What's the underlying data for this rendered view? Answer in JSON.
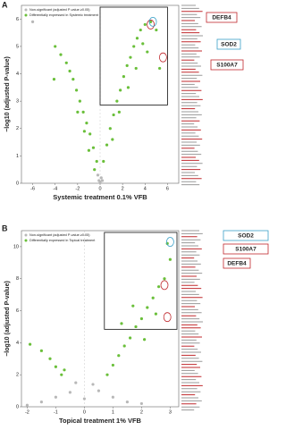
{
  "chart_data": [
    {
      "type": "scatter",
      "panel_label": "A",
      "xlabel": "Systemic treatment 0.1% VFB",
      "ylabel": "−log10 (adjusted P-value)",
      "xlim": [
        -7,
        7
      ],
      "ylim": [
        0,
        6.5
      ],
      "xticks": [
        -6,
        -4,
        -2,
        0,
        2,
        4,
        6
      ],
      "yticks": [
        0,
        1,
        2,
        3,
        4,
        5,
        6
      ],
      "annotations": [
        {
          "text": "DEFB4",
          "color": "#c0282d"
        },
        {
          "text": "SOD2",
          "color": "#3aa0c8"
        },
        {
          "text": "S100A7",
          "color": "#c0282d"
        }
      ],
      "series": [
        {
          "name": "Non-significant (adjusted P-value ≥0.05)",
          "color": "#b8b8b8",
          "x": [
            -0.1,
            0.1,
            0,
            -0.2,
            0.2,
            -6
          ],
          "y": [
            0.1,
            0.2,
            0.05,
            0.3,
            0.1,
            5.9
          ]
        },
        {
          "name": "Differentially expressed in Systemic treatment",
          "color": "#6abf3a",
          "x": [
            -0.3,
            -0.6,
            -0.9,
            -1.2,
            -1.5,
            -1.8,
            -2.1,
            -2.4,
            -2.7,
            -3.0,
            -3.5,
            -4.0,
            -1.0,
            -1.4,
            -2.0,
            -0.5,
            -4.1,
            0.3,
            0.6,
            0.9,
            1.2,
            1.5,
            1.8,
            2.1,
            2.4,
            2.7,
            3.0,
            3.3,
            3.6,
            4.0,
            4.5,
            5.0,
            1.1,
            1.7,
            2.5,
            3.2,
            4.2,
            5.3,
            3.8
          ],
          "y": [
            0.8,
            1.3,
            1.8,
            2.2,
            2.6,
            3.0,
            3.4,
            3.8,
            4.1,
            4.4,
            4.7,
            5.0,
            1.2,
            1.9,
            2.6,
            0.5,
            3.8,
            0.8,
            1.4,
            2.0,
            2.5,
            3.0,
            3.4,
            3.9,
            4.3,
            4.6,
            5.0,
            5.3,
            5.6,
            5.8,
            5.9,
            5.6,
            1.6,
            2.6,
            3.5,
            4.2,
            4.8,
            4.2,
            5.1
          ]
        }
      ]
    },
    {
      "type": "scatter",
      "panel_label": "B",
      "xlabel": "Topical treatment 1% VFB",
      "ylabel": "−log10 (adjusted P-value)",
      "xlim": [
        -2.2,
        3.3
      ],
      "ylim": [
        0,
        11
      ],
      "xticks": [
        -2,
        -1,
        0,
        1,
        2,
        3
      ],
      "yticks": [
        0,
        2,
        4,
        6,
        8,
        10
      ],
      "annotations": [
        {
          "text": "SOD2",
          "color": "#3aa0c8"
        },
        {
          "text": "S100A7",
          "color": "#c0282d"
        },
        {
          "text": "DEFB4",
          "color": "#c0282d"
        }
      ],
      "series": [
        {
          "name": "Non-significant (adjusted P-value ≥0.05)",
          "color": "#b8b8b8",
          "x": [
            -1.5,
            -1,
            -0.5,
            0,
            0.5,
            1,
            1.5,
            -0.3,
            0.3,
            2,
            -2
          ],
          "y": [
            0.3,
            0.6,
            0.9,
            0.5,
            1.0,
            0.6,
            0.3,
            1.5,
            1.4,
            0.2,
            0.1
          ]
        },
        {
          "name": "Differentially expressed in Topical treatment",
          "color": "#6abf3a",
          "x": [
            -0.8,
            -1.0,
            -1.2,
            -1.5,
            -1.9,
            -0.7,
            0.8,
            1.0,
            1.2,
            1.4,
            1.6,
            1.8,
            2.0,
            2.2,
            2.4,
            2.6,
            2.8,
            3.0,
            2.9,
            1.3,
            2.1,
            1.7,
            2.5
          ],
          "y": [
            2.0,
            2.5,
            3.0,
            3.5,
            3.9,
            2.3,
            2.0,
            2.6,
            3.2,
            3.8,
            4.3,
            5.0,
            5.5,
            6.2,
            6.8,
            7.5,
            8.0,
            9.2,
            10.2,
            5.2,
            4.2,
            6.3,
            5.8
          ]
        }
      ]
    }
  ]
}
